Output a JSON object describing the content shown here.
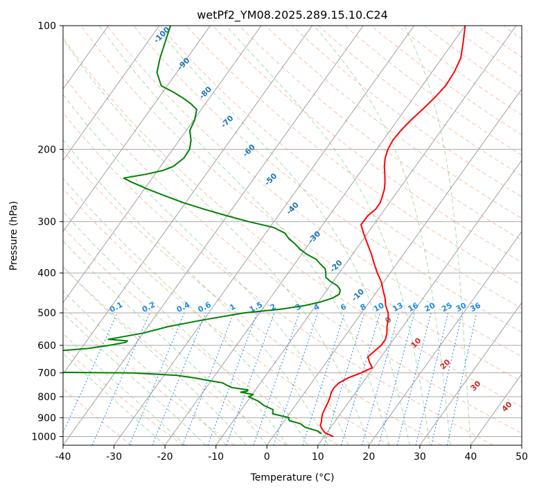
{
  "chart_data": {
    "type": "line",
    "subtype": "skew-t log-p diagram",
    "title": "wetPf2_YM08.2025.289.15.10.C24",
    "xlabel": "Temperature (°C)",
    "ylabel": "Pressure (hPa)",
    "xlim": [
      -40,
      50
    ],
    "ylim": [
      1050,
      100
    ],
    "yscale": "log",
    "grid": true,
    "x_ticks": [
      -40,
      -30,
      -20,
      -10,
      0,
      10,
      20,
      30,
      40,
      50
    ],
    "y_ticks": [
      100,
      200,
      300,
      400,
      500,
      600,
      700,
      800,
      900,
      1000
    ],
    "colors": {
      "temperature": "#ff0000",
      "dewpoint": "#008000",
      "isotherm": "#a0a0a0",
      "isobar": "#a8a8a8",
      "dry_adiabat": "#f4a582",
      "moist_adiabat": "#66bb66",
      "mixing_ratio": "#1e88e5",
      "saturation_label": "#1f77b4",
      "adiabat_label": "#d62728"
    },
    "series": [
      {
        "key": "temperature",
        "pressure": [
          1000,
          980,
          960,
          940,
          920,
          900,
          880,
          860,
          840,
          820,
          800,
          780,
          760,
          740,
          720,
          700,
          680,
          660,
          640,
          620,
          600,
          580,
          560,
          540,
          520,
          500,
          480,
          460,
          440,
          420,
          400,
          380,
          360,
          340,
          320,
          305,
          290,
          280,
          270,
          260,
          250,
          240,
          230,
          220,
          210,
          200,
          190,
          180,
          170,
          160,
          150,
          140,
          130,
          120,
          110,
          100
        ],
        "values": [
          11.8,
          9.7,
          8.6,
          7.7,
          7.4,
          6.9,
          6.5,
          6.3,
          6.1,
          5.9,
          5.6,
          5.2,
          5.1,
          5.4,
          6.5,
          8.3,
          9.8,
          8.5,
          7.4,
          7.9,
          8.4,
          8.4,
          7.8,
          6.9,
          6.2,
          5.2,
          3.7,
          2.5,
          1.0,
          -0.5,
          -2.5,
          -4.4,
          -6.3,
          -8.5,
          -10.8,
          -12.5,
          -12.4,
          -11.8,
          -11.8,
          -12.3,
          -12.9,
          -13.8,
          -14.9,
          -16.1,
          -17.1,
          -17.8,
          -18.1,
          -17.9,
          -17.4,
          -16.6,
          -15.9,
          -15.4,
          -15.6,
          -16.3,
          -18.0,
          -20.0
        ]
      },
      {
        "key": "dewpoint",
        "pressure": [
          985,
          970,
          950,
          930,
          915,
          905,
          900,
          880,
          860,
          840,
          820,
          800,
          790,
          780,
          775,
          770,
          760,
          750,
          740,
          730,
          720,
          710,
          700,
          695,
          640,
          630,
          620,
          610,
          600,
          590,
          585,
          580,
          560,
          540,
          520,
          500,
          490,
          480,
          470,
          460,
          450,
          440,
          430,
          420,
          410,
          400,
          390,
          380,
          370,
          360,
          350,
          340,
          330,
          320,
          310,
          300,
          290,
          280,
          270,
          260,
          250,
          240,
          235,
          230,
          225,
          220,
          210,
          200,
          190,
          180,
          170,
          160,
          155,
          150,
          145,
          140,
          130,
          120,
          110,
          100
        ],
        "values": [
          9.1,
          8.0,
          5.0,
          3.5,
          1.0,
          0.5,
          0.5,
          -3.3,
          -3.8,
          -6.2,
          -7.9,
          -10.4,
          -9.8,
          -12.6,
          -11.4,
          -11.5,
          -15.0,
          -16.3,
          -17.5,
          -20.7,
          -23.7,
          -27.5,
          -36.5,
          -70.0,
          -80.0,
          -62.0,
          -55.0,
          -48.5,
          -45.0,
          -42.2,
          -42.0,
          -46.0,
          -40.0,
          -36.0,
          -30.0,
          -23.0,
          -16.4,
          -12.2,
          -9.5,
          -7.7,
          -7.0,
          -7.4,
          -8.5,
          -10.4,
          -12.0,
          -12.6,
          -13.4,
          -15.0,
          -16.5,
          -19.0,
          -21.0,
          -22.7,
          -24.7,
          -26.2,
          -29.2,
          -34.9,
          -40.2,
          -45.3,
          -50.3,
          -54.8,
          -59.3,
          -63.6,
          -65.6,
          -61.8,
          -58.9,
          -57.5,
          -56.6,
          -56.7,
          -57.7,
          -59.3,
          -59.8,
          -60.9,
          -62.8,
          -65.2,
          -68.0,
          -71.2,
          -73.9,
          -75.3,
          -76.5,
          -77.8
        ]
      }
    ],
    "saturation_labels": [
      "-100",
      "-90",
      "-80",
      "-70",
      "-60",
      "-50",
      "-40",
      "-30",
      "-20",
      "-10"
    ],
    "mixing_ratio_labels": [
      "0.1",
      "0.2",
      "0.4",
      "0.6",
      "1",
      "1.5",
      "2",
      "3",
      "4",
      "6",
      "8",
      "10",
      "13",
      "16",
      "20",
      "25",
      "30",
      "36"
    ],
    "adiabat_labels": [
      "0",
      "10",
      "20",
      "30",
      "40"
    ]
  }
}
